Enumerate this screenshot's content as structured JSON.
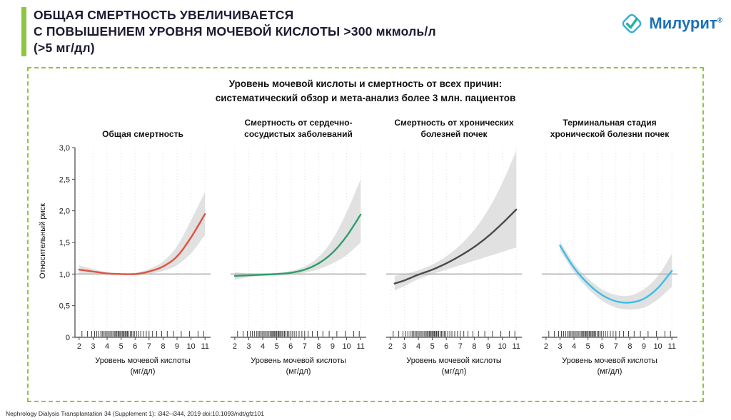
{
  "slide": {
    "title_lines": [
      "ОБЩАЯ СМЕРТНОСТЬ УВЕЛИЧИВАЕТСЯ",
      "С ПОВЫШЕНИЕМ УРОВНЯ МОЧЕВОЙ КИСЛОТЫ >300 мкмоль/л",
      "(>5 мг/дл)"
    ],
    "footer": "Nephrology Dialysis Transplantation 34 (Supplement 1): i342–i344, 2019 doi:10.1093/ndt/gfz101"
  },
  "logo": {
    "name": "Милурит",
    "reg": "®"
  },
  "panel": {
    "title_lines": [
      "Уровень мочевой кислоты и смертность от всех причин:",
      "систематический обзор и мета-анализ более 3 млн. пациентов"
    ]
  },
  "colors": {
    "accent_green": "#8DC63F",
    "logo_blue": "#1D71B8",
    "logo_teal": "#23B2A9",
    "band_gray": "#DCDCDC",
    "ref_gray": "#B5B5B5"
  },
  "chart_data": [
    {
      "type": "line",
      "title_lines": [
        "Общая смертность"
      ],
      "ylabel": "Относительный риск",
      "xlabel": "Уровень мочевой кислоты",
      "xlabel_unit": "(мг/дл)",
      "ylim": [
        0,
        3
      ],
      "ref_line": 1.0,
      "color": "#E0523E",
      "xticks": [
        2,
        3,
        4,
        5,
        6,
        7,
        8,
        9,
        10,
        11
      ],
      "ytick_values": [
        0,
        0.5,
        1,
        1.5,
        2,
        2.5,
        3
      ],
      "ytick_labels": [
        "0",
        "0,5",
        "1,0",
        "1,5",
        "2,0",
        "2,5",
        "3,0"
      ],
      "x": [
        2,
        3,
        4,
        5,
        6,
        7,
        8,
        9,
        10,
        11
      ],
      "values": [
        1.07,
        1.04,
        1.01,
        1.0,
        1.0,
        1.04,
        1.12,
        1.28,
        1.58,
        1.95
      ],
      "band_upper": [
        1.14,
        1.08,
        1.03,
        1.01,
        1.02,
        1.08,
        1.2,
        1.44,
        1.85,
        2.3
      ],
      "band_lower": [
        1.01,
        1.0,
        0.99,
        0.99,
        0.98,
        1.0,
        1.05,
        1.14,
        1.33,
        1.62
      ],
      "rug_x": [
        2.2,
        2.6,
        2.9,
        3.1,
        3.25,
        3.4,
        3.55,
        3.65,
        3.75,
        3.85,
        3.95,
        4.05,
        4.15,
        4.25,
        4.35,
        4.45,
        4.55,
        4.62,
        4.7,
        4.78,
        4.85,
        4.92,
        5.0,
        5.08,
        5.15,
        5.22,
        5.3,
        5.38,
        5.45,
        5.55,
        5.65,
        5.75,
        5.85,
        5.95,
        6.1,
        6.25,
        6.4,
        6.6,
        6.8,
        7.0,
        7.25,
        7.55,
        7.9,
        8.3,
        8.75,
        9.3,
        9.9,
        10.5,
        10.9
      ]
    },
    {
      "type": "line",
      "title_lines": [
        "Смертность от сердечно-",
        "сосудистых заболеваний"
      ],
      "xlabel": "Уровень мочевой кислоты",
      "xlabel_unit": "(мг/дл)",
      "ylim": [
        0,
        3
      ],
      "ref_line": 1.0,
      "color": "#2F9E68",
      "xticks": [
        2,
        3,
        4,
        5,
        6,
        7,
        8,
        9,
        10,
        11
      ],
      "x": [
        2,
        3,
        4,
        5,
        6,
        7,
        8,
        9,
        10,
        11
      ],
      "values": [
        0.97,
        0.98,
        0.99,
        1.0,
        1.02,
        1.07,
        1.17,
        1.34,
        1.6,
        1.94
      ],
      "band_upper": [
        1.03,
        1.01,
        1.01,
        1.02,
        1.05,
        1.12,
        1.27,
        1.55,
        1.98,
        2.5
      ],
      "band_lower": [
        0.91,
        0.95,
        0.97,
        0.98,
        0.99,
        1.02,
        1.08,
        1.17,
        1.3,
        1.5
      ],
      "rug_x": [
        2.2,
        2.6,
        2.9,
        3.1,
        3.25,
        3.4,
        3.55,
        3.65,
        3.75,
        3.85,
        3.95,
        4.05,
        4.15,
        4.25,
        4.35,
        4.45,
        4.55,
        4.62,
        4.7,
        4.78,
        4.85,
        4.92,
        5.0,
        5.08,
        5.15,
        5.22,
        5.3,
        5.38,
        5.45,
        5.55,
        5.65,
        5.75,
        5.85,
        5.95,
        6.1,
        6.25,
        6.4,
        6.6,
        6.8,
        7.0,
        7.25,
        7.55,
        7.9,
        8.3,
        8.75,
        9.3,
        9.9,
        10.5,
        10.9
      ]
    },
    {
      "type": "line",
      "title_lines": [
        "Смертность от хронических",
        "болезней почек"
      ],
      "xlabel": "Уровень мочевой кислоты",
      "xlabel_unit": "(мг/дл)",
      "ylim": [
        0,
        3
      ],
      "ref_line": 1.0,
      "color": "#4A4A4A",
      "xticks": [
        2,
        3,
        4,
        5,
        6,
        7,
        8,
        9,
        10,
        11
      ],
      "x": [
        2.3,
        3,
        4,
        5,
        6,
        7,
        8,
        9,
        10,
        11
      ],
      "values": [
        0.85,
        0.9,
        0.99,
        1.07,
        1.17,
        1.29,
        1.43,
        1.6,
        1.8,
        2.02
      ],
      "band_upper": [
        0.97,
        1.0,
        1.06,
        1.15,
        1.28,
        1.46,
        1.7,
        2.02,
        2.44,
        2.95
      ],
      "band_lower": [
        0.74,
        0.81,
        0.92,
        1.0,
        1.07,
        1.14,
        1.21,
        1.28,
        1.35,
        1.42
      ],
      "rug_x": [
        2.2,
        2.6,
        2.9,
        3.1,
        3.25,
        3.4,
        3.55,
        3.65,
        3.75,
        3.85,
        3.95,
        4.05,
        4.15,
        4.25,
        4.35,
        4.45,
        4.55,
        4.62,
        4.7,
        4.78,
        4.85,
        4.92,
        5.0,
        5.08,
        5.15,
        5.22,
        5.3,
        5.38,
        5.45,
        5.55,
        5.65,
        5.75,
        5.85,
        5.95,
        6.1,
        6.25,
        6.4,
        6.6,
        6.8,
        7.0,
        7.25,
        7.55,
        7.9,
        8.3,
        8.75,
        9.3,
        9.9,
        10.5,
        10.9
      ]
    },
    {
      "type": "line",
      "title_lines": [
        "Терминальная стадия",
        "хронической болезни почек"
      ],
      "xlabel": "Уровень мочевой кислоты",
      "xlabel_unit": "(мг/дл)",
      "ylim": [
        0,
        3
      ],
      "ref_line": 1.0,
      "color": "#3BBEE8",
      "xticks": [
        2,
        3,
        4,
        5,
        6,
        7,
        8,
        9,
        10,
        11
      ],
      "x": [
        3,
        4,
        5,
        6,
        7,
        8,
        9,
        10,
        11
      ],
      "values": [
        1.45,
        1.1,
        0.85,
        0.67,
        0.57,
        0.55,
        0.61,
        0.78,
        1.05
      ],
      "band_upper": [
        1.52,
        1.17,
        0.93,
        0.76,
        0.67,
        0.66,
        0.76,
        0.97,
        1.32
      ],
      "band_lower": [
        1.38,
        1.03,
        0.77,
        0.58,
        0.47,
        0.44,
        0.47,
        0.6,
        0.8
      ],
      "rug_x": [
        2.2,
        2.6,
        2.9,
        3.1,
        3.25,
        3.4,
        3.55,
        3.65,
        3.75,
        3.85,
        3.95,
        4.05,
        4.15,
        4.25,
        4.35,
        4.45,
        4.55,
        4.62,
        4.7,
        4.78,
        4.85,
        4.92,
        5.0,
        5.08,
        5.15,
        5.22,
        5.3,
        5.38,
        5.45,
        5.55,
        5.65,
        5.75,
        5.85,
        5.95,
        6.1,
        6.25,
        6.4,
        6.6,
        6.8,
        7.0,
        7.25,
        7.55,
        7.9,
        8.3,
        8.75,
        9.3,
        9.9,
        10.5,
        10.9
      ]
    }
  ]
}
